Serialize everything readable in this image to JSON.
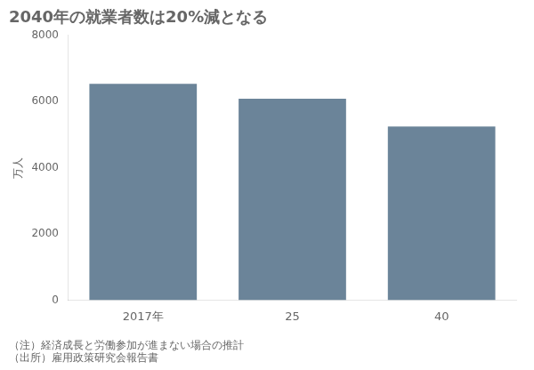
{
  "chart_data": {
    "type": "bar",
    "title": "2040年の就業者数は20%減となる",
    "ylabel": "万人",
    "categories": [
      "2017年",
      "25",
      "40"
    ],
    "values": [
      6530,
      6080,
      5245
    ],
    "color": "#6b8499",
    "ylim": [
      0,
      8000
    ],
    "yticks": [
      0,
      2000,
      4000,
      6000,
      8000
    ],
    "grid": false,
    "annotations": [
      "（注）経済成長と労働参加が進まない場合の推計",
      "（出所）雇用政策研究会報告書"
    ]
  }
}
